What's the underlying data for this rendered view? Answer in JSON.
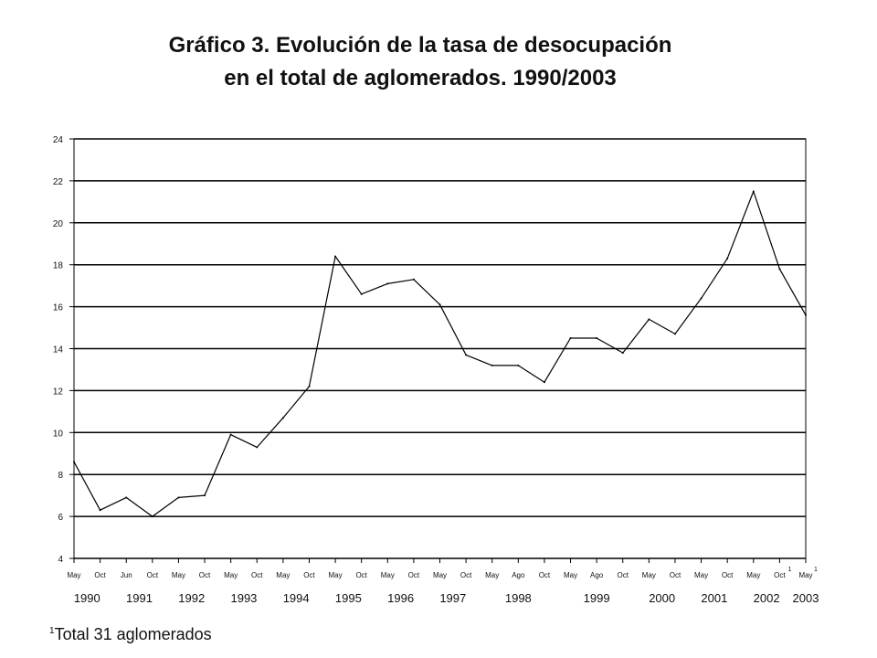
{
  "title_line1": "Gráfico 3. Evolución de la tasa de desocupación",
  "title_line2": "en el total de aglomerados. 1990/2003",
  "footnote": {
    "mark": "1",
    "text": "Total 31 aglomerados"
  },
  "chart_data": {
    "type": "line",
    "title": "Gráfico 3. Evolución de la tasa de desocupación en el total de aglomerados. 1990/2003",
    "xlabel": "",
    "ylabel": "",
    "ylim": [
      4,
      24
    ],
    "yticks": [
      4,
      6,
      8,
      10,
      12,
      14,
      16,
      18,
      20,
      22,
      24
    ],
    "grid": "horizontal",
    "x": [
      "May 1990",
      "Oct 1990",
      "Jun 1991",
      "Oct 1991",
      "May 1992",
      "Oct 1992",
      "May 1993",
      "Oct 1993",
      "May 1994",
      "Oct 1994",
      "May 1995",
      "Oct 1995",
      "May 1996",
      "Oct 1996",
      "May 1997",
      "Oct 1997",
      "May 1998",
      "Ago 1998",
      "Oct 1998",
      "May 1999",
      "Ago 1999",
      "Oct 1999",
      "May 2000",
      "Oct 2000",
      "May 2001",
      "Oct 2001",
      "May 2002",
      "Oct 2002",
      "May 2003"
    ],
    "tick_labels": [
      {
        "label": "May",
        "sup": ""
      },
      {
        "label": "Oct",
        "sup": ""
      },
      {
        "label": "Jun",
        "sup": ""
      },
      {
        "label": "Oct",
        "sup": ""
      },
      {
        "label": "May",
        "sup": ""
      },
      {
        "label": "Oct",
        "sup": ""
      },
      {
        "label": "May",
        "sup": ""
      },
      {
        "label": "Oct",
        "sup": ""
      },
      {
        "label": "May",
        "sup": ""
      },
      {
        "label": "Oct",
        "sup": ""
      },
      {
        "label": "May",
        "sup": ""
      },
      {
        "label": "Oct",
        "sup": ""
      },
      {
        "label": "May",
        "sup": ""
      },
      {
        "label": "Oct",
        "sup": ""
      },
      {
        "label": "May",
        "sup": ""
      },
      {
        "label": "Oct",
        "sup": ""
      },
      {
        "label": "May",
        "sup": ""
      },
      {
        "label": "Ago",
        "sup": ""
      },
      {
        "label": "Oct",
        "sup": ""
      },
      {
        "label": "May",
        "sup": ""
      },
      {
        "label": "Ago",
        "sup": ""
      },
      {
        "label": "Oct",
        "sup": ""
      },
      {
        "label": "May",
        "sup": ""
      },
      {
        "label": "Oct",
        "sup": ""
      },
      {
        "label": "May",
        "sup": ""
      },
      {
        "label": "Oct",
        "sup": ""
      },
      {
        "label": "May",
        "sup": ""
      },
      {
        "label": "Oct",
        "sup": "1"
      },
      {
        "label": "May",
        "sup": "1"
      }
    ],
    "year_groups": [
      {
        "year": "1990",
        "first": 0,
        "last": 1
      },
      {
        "year": "1991",
        "first": 2,
        "last": 3
      },
      {
        "year": "1992",
        "first": 4,
        "last": 5
      },
      {
        "year": "1993",
        "first": 6,
        "last": 7
      },
      {
        "year": "1994",
        "first": 8,
        "last": 9
      },
      {
        "year": "1995",
        "first": 10,
        "last": 11
      },
      {
        "year": "1996",
        "first": 12,
        "last": 13
      },
      {
        "year": "1997",
        "first": 14,
        "last": 15
      },
      {
        "year": "1998",
        "first": 16,
        "last": 18
      },
      {
        "year": "1999",
        "first": 19,
        "last": 21
      },
      {
        "year": "2000",
        "first": 22,
        "last": 23
      },
      {
        "year": "2001",
        "first": 24,
        "last": 25
      },
      {
        "year": "2002",
        "first": 26,
        "last": 27
      },
      {
        "year": "2003",
        "first": 28,
        "last": 28
      }
    ],
    "series": [
      {
        "values": [
          8.6,
          6.3,
          6.9,
          6.0,
          6.9,
          7.0,
          9.9,
          9.3,
          10.7,
          12.2,
          18.4,
          16.6,
          17.1,
          17.3,
          16.1,
          13.7,
          13.2,
          13.2,
          12.4,
          14.5,
          14.5,
          13.8,
          15.4,
          14.7,
          16.4,
          18.3,
          21.5,
          17.8,
          15.6
        ],
        "color": "#000000"
      }
    ],
    "colors": {
      "line": "#000000",
      "grid": "#000000",
      "background": "#ffffff"
    }
  }
}
